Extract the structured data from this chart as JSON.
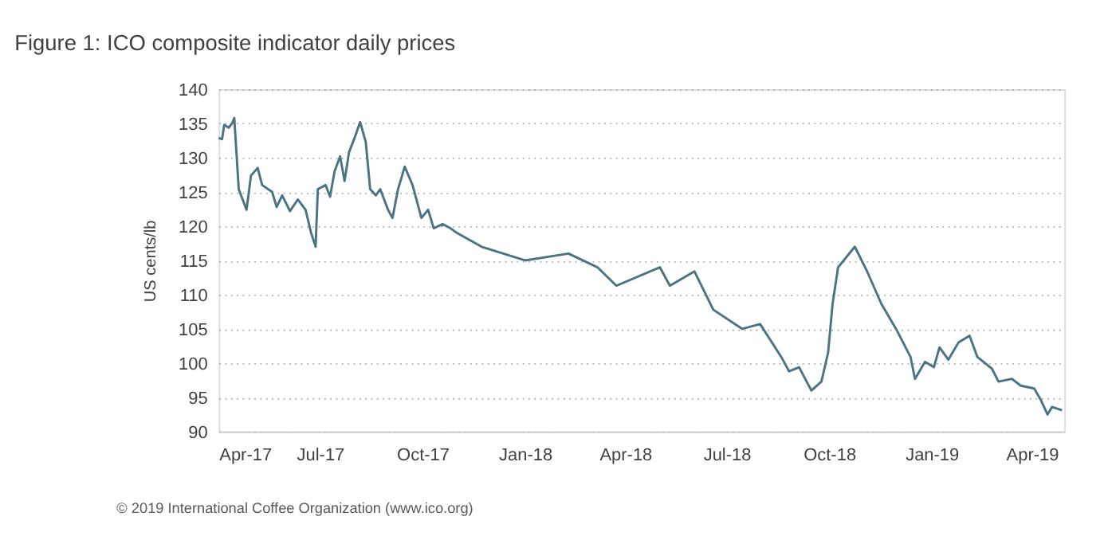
{
  "chart_data": {
    "type": "line",
    "title": "Figure 1: ICO composite indicator daily prices",
    "ylabel": "US cents/lb",
    "x": [
      "2017-04-01",
      "2017-04-04",
      "2017-04-06",
      "2017-04-10",
      "2017-04-13",
      "2017-04-15",
      "2017-04-19",
      "2017-04-26",
      "2017-04-30",
      "2017-05-06",
      "2017-05-10",
      "2017-05-19",
      "2017-05-23",
      "2017-05-28",
      "2017-06-04",
      "2017-06-11",
      "2017-06-18",
      "2017-06-23",
      "2017-06-27",
      "2017-06-29",
      "2017-07-06",
      "2017-07-10",
      "2017-07-14",
      "2017-07-19",
      "2017-07-23",
      "2017-07-27",
      "2017-08-01",
      "2017-08-06",
      "2017-08-11",
      "2017-08-15",
      "2017-08-20",
      "2017-08-24",
      "2017-08-31",
      "2017-09-04",
      "2017-09-09",
      "2017-09-15",
      "2017-09-22",
      "2017-09-30",
      "2017-10-06",
      "2017-10-11",
      "2017-10-19",
      "2017-10-26",
      "2017-11-01",
      "2017-11-23",
      "2018-01-01",
      "2018-02-09",
      "2018-03-07",
      "2018-03-24",
      "2018-05-02",
      "2018-05-11",
      "2018-06-02",
      "2018-06-19",
      "2018-07-15",
      "2018-07-31",
      "2018-08-19",
      "2018-08-26",
      "2018-09-04",
      "2018-09-15",
      "2018-09-24",
      "2018-09-30",
      "2018-10-04",
      "2018-10-09",
      "2018-10-24",
      "2018-11-04",
      "2018-11-17",
      "2018-11-30",
      "2018-12-13",
      "2018-12-17",
      "2018-12-26",
      "2019-01-03",
      "2019-01-08",
      "2019-01-16",
      "2019-01-25",
      "2019-02-04",
      "2019-02-11",
      "2019-02-24",
      "2019-03-02",
      "2019-03-14",
      "2019-03-22",
      "2019-04-03",
      "2019-04-09",
      "2019-04-15",
      "2019-04-19",
      "2019-04-28"
    ],
    "series": [
      {
        "color": "#4a7383",
        "values": [
          132.9,
          132.7,
          134.8,
          134.4,
          135,
          135.8,
          125.4,
          122.4,
          127.4,
          128.5,
          126,
          125,
          122.8,
          124.5,
          122.2,
          123.9,
          122.4,
          119,
          117,
          125.4,
          126,
          124.3,
          128,
          130.2,
          126.6,
          130.8,
          132.9,
          135.2,
          132.3,
          125.4,
          124.5,
          125.4,
          122.4,
          121.2,
          125.4,
          128.7,
          126,
          121.2,
          122.4,
          119.7,
          120.3,
          119.7,
          119,
          117,
          115,
          116,
          114,
          111.3,
          114,
          111.3,
          113.4,
          107.8,
          105,
          105.7,
          100.9,
          98.8,
          99.4,
          96,
          97.3,
          101.5,
          108.6,
          114,
          117,
          113.4,
          108.6,
          105,
          100.9,
          97.7,
          100.2,
          99.4,
          102.3,
          100.5,
          103,
          104,
          100.9,
          99.2,
          97.3,
          97.7,
          96.7,
          96.3,
          94.6,
          92.5,
          93.6,
          93.1
        ]
      }
    ],
    "xlim": [
      "2017-04-01",
      "2019-04-30"
    ],
    "xticks": [
      {
        "value": "2017-04-01",
        "label": "Apr-17"
      },
      {
        "value": "2017-07-01",
        "label": "Jul-17"
      },
      {
        "value": "2017-10-01",
        "label": "Oct-17"
      },
      {
        "value": "2018-01-01",
        "label": "Jan-18"
      },
      {
        "value": "2018-04-01",
        "label": "Apr-18"
      },
      {
        "value": "2018-07-01",
        "label": "Jul-18"
      },
      {
        "value": "2018-10-01",
        "label": "Oct-18"
      },
      {
        "value": "2019-01-01",
        "label": "Jan-19"
      },
      {
        "value": "2019-04-01",
        "label": "Apr-19"
      }
    ],
    "ylim": [
      90,
      140
    ],
    "yticks": [
      90,
      95,
      100,
      105,
      110,
      115,
      120,
      125,
      130,
      135,
      140
    ],
    "grid": "y",
    "legend": false,
    "marker": "none",
    "line_style": "solid",
    "annotations": [
      "© 2019 International Coffee Organization (www.ico.org)"
    ]
  }
}
